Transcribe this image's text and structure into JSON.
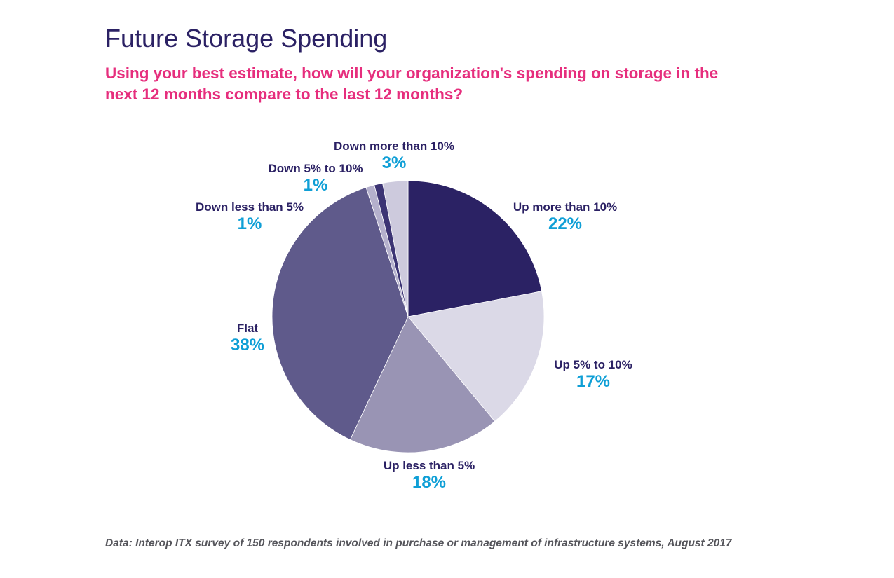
{
  "header": {
    "title": "Future Storage Spending",
    "subtitle": "Using your best estimate, how will your organization's spending on storage in the next 12 months compare to the last 12 months?"
  },
  "footnote": "Data: Interop ITX survey of 150 respondents involved in purchase or management of infrastructure systems, August 2017",
  "chart_data": {
    "type": "pie",
    "title": "Future Storage Spending",
    "start": "12 o'clock, clockwise",
    "slices": [
      {
        "label": "Up more than 10%",
        "value": 22,
        "value_label": "22%",
        "color": "#2b2264"
      },
      {
        "label": "Up 5% to 10%",
        "value": 17,
        "value_label": "17%",
        "color": "#dbd9e7"
      },
      {
        "label": "Up less than 5%",
        "value": 18,
        "value_label": "18%",
        "color": "#9994b4"
      },
      {
        "label": "Flat",
        "value": 38,
        "value_label": "38%",
        "color": "#5f5a8b"
      },
      {
        "label": "Down less than 5%",
        "value": 1,
        "value_label": "1%",
        "color": "#b4b0cc"
      },
      {
        "label": "Down 5% to 10%",
        "value": 1,
        "value_label": "1%",
        "color": "#3c3474"
      },
      {
        "label": "Down more than 10%",
        "value": 3,
        "value_label": "3%",
        "color": "#cdcadd"
      }
    ]
  }
}
